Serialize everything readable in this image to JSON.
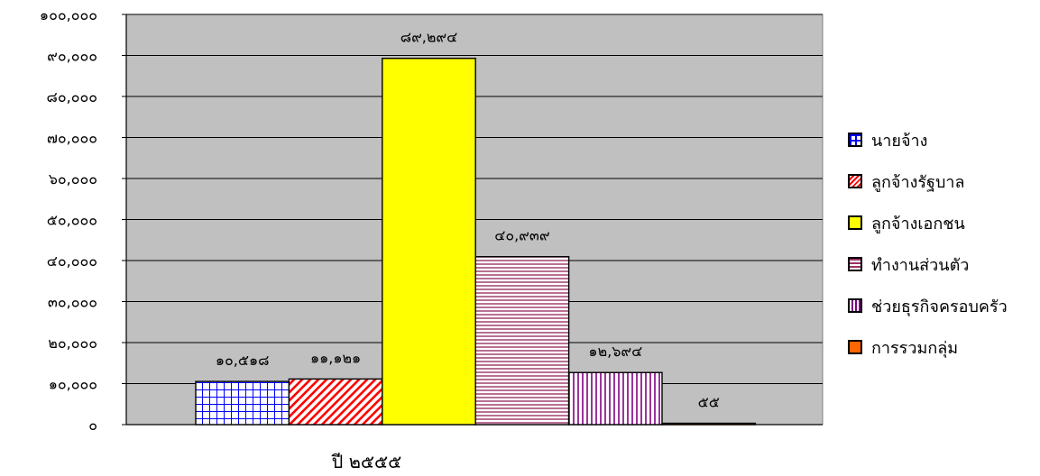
{
  "chart_data": {
    "type": "bar",
    "categories": [
      "ปี ๒๕๕๕"
    ],
    "series": [
      {
        "name": "นายจ้าง",
        "values": [
          10518
        ],
        "label": "๑๐,๕๑๘",
        "color": "#0000FF",
        "pattern": "grid"
      },
      {
        "name": "ลูกจ้างรัฐบาล",
        "values": [
          11121
        ],
        "label": "๑๑,๑๒๑",
        "color": "#FF0000",
        "pattern": "diagonal"
      },
      {
        "name": "ลูกจ้างเอกชน",
        "values": [
          89294
        ],
        "label": "๘๙,๒๙๔",
        "color": "#FFFF00",
        "pattern": "solid"
      },
      {
        "name": "ทำงานส่วนตัว",
        "values": [
          40939
        ],
        "label": "๔๐,๙๓๙",
        "color": "#993366",
        "pattern": "horizontal"
      },
      {
        "name": "ช่วยธุรกิจครอบครัว",
        "values": [
          12694
        ],
        "label": "๑๒,๖๙๔",
        "color": "#800080",
        "pattern": "vertical"
      },
      {
        "name": "การรวมกลุ่ม",
        "values": [
          55
        ],
        "label": "๕๕",
        "color": "#FF6600",
        "pattern": "solid"
      }
    ],
    "yticks": [
      "๐",
      "๑๐,๐๐๐",
      "๒๐,๐๐๐",
      "๓๐,๐๐๐",
      "๔๐,๐๐๐",
      "๕๐,๐๐๐",
      "๖๐,๐๐๐",
      "๗๐,๐๐๐",
      "๘๐,๐๐๐",
      "๙๐,๐๐๐",
      "๑๐๐,๐๐๐"
    ],
    "ylim": [
      0,
      100000
    ],
    "grid": true,
    "plot_background": "#C0C0C0",
    "legend_position": "right"
  }
}
